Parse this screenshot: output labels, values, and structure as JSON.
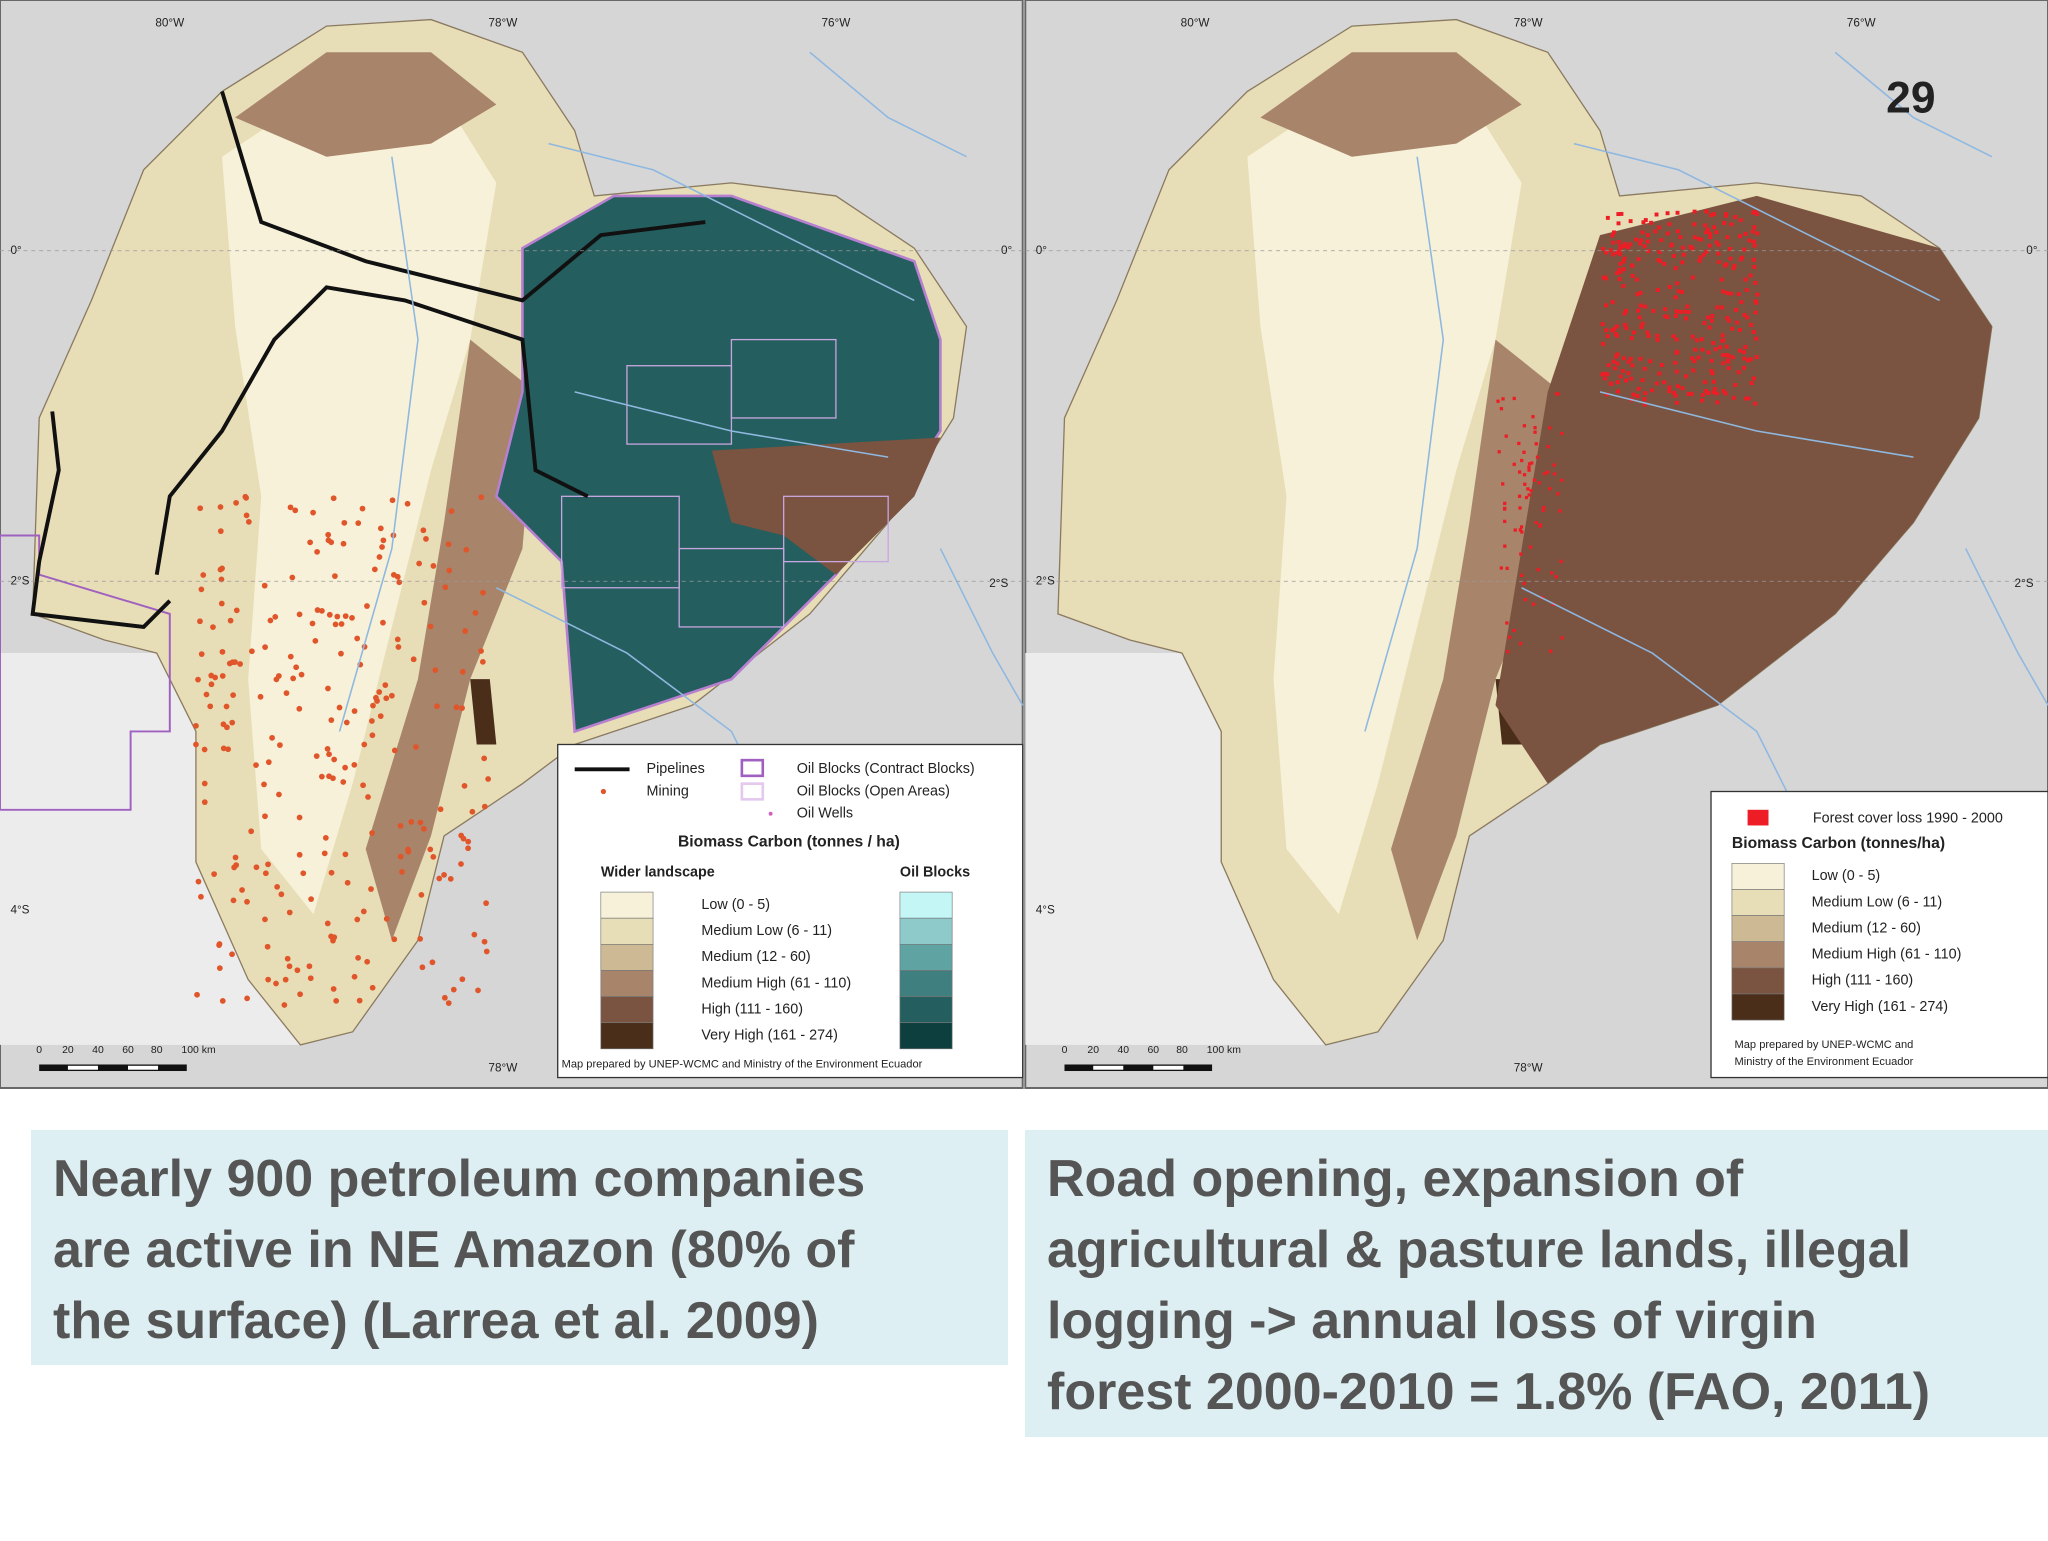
{
  "page_number": "29",
  "maps": [
    {
      "coords": {
        "top": [
          "80°W",
          "78°W",
          "76°W"
        ],
        "left": [
          "0°",
          "2°S",
          "4°S"
        ],
        "right": [
          "0°",
          "2°S"
        ],
        "bottom": [
          "78°W"
        ]
      },
      "scale": [
        "0",
        "20",
        "40",
        "60",
        "80",
        "100 km"
      ],
      "legend": {
        "symbols": [
          "Pipelines",
          "Mining",
          "Oil Blocks (Contract Blocks)",
          "Oil Blocks (Open Areas)",
          "Oil Wells"
        ],
        "title": "Biomass Carbon (tonnes / ha)",
        "columns": [
          "Wider landscape",
          "Oil Blocks"
        ],
        "classes": [
          "Low (0 - 5)",
          "Medium Low (6 - 11)",
          "Medium (12 - 60)",
          "Medium High (61 - 110)",
          "High (111 - 160)",
          "Very High (161 - 274)"
        ],
        "credit": [
          "Map prepared by UNEP-WCMC and Ministry of the Environment Ecuador"
        ]
      }
    },
    {
      "coords": {
        "top": [
          "80°W",
          "78°W",
          "76°W"
        ],
        "left": [
          "0°",
          "2°S",
          "4°S"
        ],
        "right": [
          "0°",
          "2°S"
        ],
        "bottom": [
          "78°W"
        ]
      },
      "scale": [
        "0",
        "20",
        "40",
        "60",
        "80",
        "100 km"
      ],
      "legend": {
        "symbols": [
          "Forest cover loss 1990 - 2000"
        ],
        "title": "Biomass Carbon (tonnes/ha)",
        "classes": [
          "Low (0 - 5)",
          "Medium Low (6 - 11)",
          "Medium (12 - 60)",
          "Medium High (61 - 110)",
          "High (111 - 160)",
          "Very High (161 - 274)"
        ],
        "credit": [
          "Map prepared by UNEP-WCMC and",
          "Ministry of the Environment Ecuador"
        ]
      }
    }
  ],
  "captions": [
    [
      "Nearly 900 petroleum companies",
      "are active in NE Amazon (80% of",
      "the surface) (Larrea et al. 2009)"
    ],
    [
      "Road opening, expansion of",
      "agricultural & pasture lands, illegal",
      "logging -> annual loss of virgin",
      "forest 2000-2010 = 1.8% (FAO, 2011)"
    ]
  ]
}
